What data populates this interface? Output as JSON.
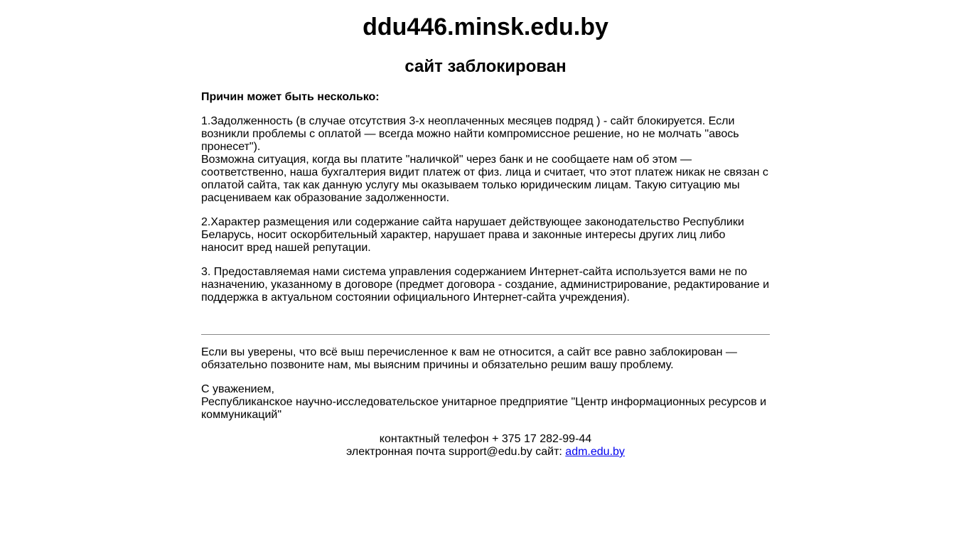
{
  "header": {
    "domain": "ddu446.minsk.edu.by",
    "status": "сайт заблокирован"
  },
  "reasons": {
    "intro": "Причин может быть несколько:",
    "reason1": "1.Задолженность (в случае отсутствия 3-х неоплаченных месяцев подряд ) - сайт блокируется. Если возникли проблемы с оплатой — всегда можно найти компромиссное решение, но не молчать \"авось пронесет\").",
    "reason1_note": "Возможна ситуация, когда вы платите \"наличкой\" через банк и не сообщаете нам об этом — соответственно, наша бухгалтерия видит платеж от физ. лица и считает, что этот платеж никак не связан с оплатой сайта, так как данную услугу мы оказываем только юридическим лицам. Такую ситуацию мы расцениваем как образование задолженности.",
    "reason2": "2.Характер размещения или содержание сайта нарушает действующее законодательство Республики Беларусь, носит оскорбительный характер, нарушает права и законные интересы других лиц либо наносит вред нашей репутации.",
    "reason3": "3. Предоставляемая нами система управления содержанием Интернет-сайта используется вами не по назначению, указанному в договоре (предмет договора - создание, администрирование, редактирование и поддержка в актуальном состоянии официального Интернет-сайта учреждения)."
  },
  "footer": {
    "call_to_action": "Если вы уверены, что всё выш перечисленное к вам не относится, а сайт все равно заблокирован — обязательно позвоните нам, мы выясним причины и обязательно решим вашу проблему.",
    "regards": "С уважением,",
    "organization": "Республиканское научно-исследовательское унитарное предприятие \"Центр информационных ресурсов и коммуникаций\"",
    "phone": "контактный телефон + 375 17 282-99-44",
    "email_line": "электронная почта support@edu.by сайт: ",
    "site_link": "adm.edu.by"
  },
  "colors": {
    "link": "#0000ee",
    "divider": "#888888"
  }
}
